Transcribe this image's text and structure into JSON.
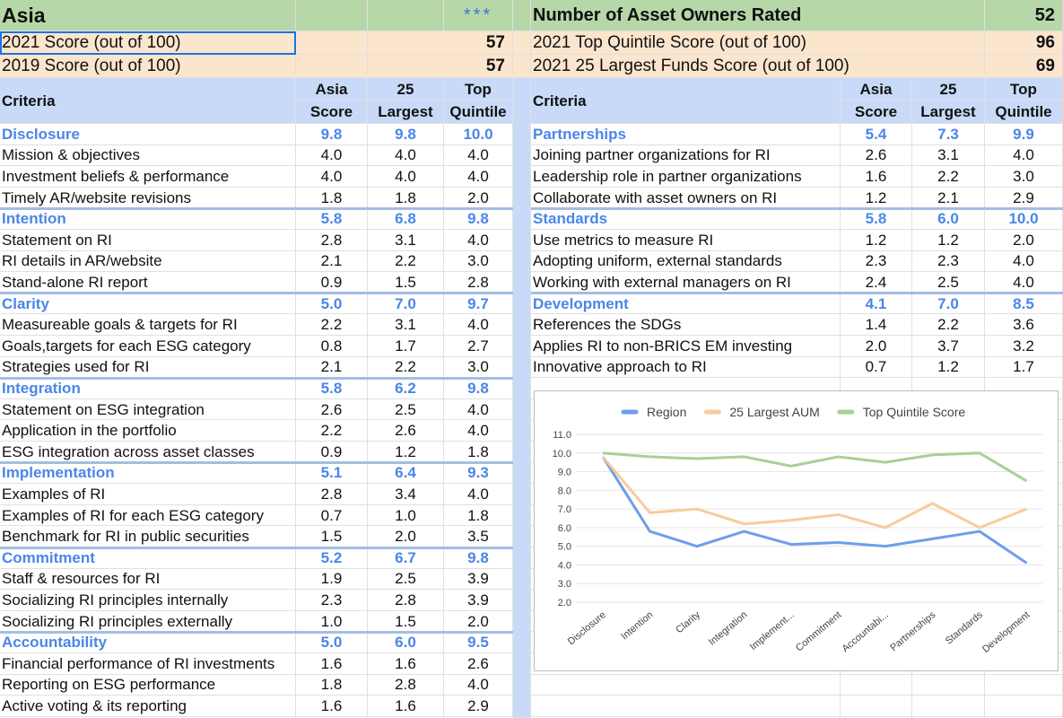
{
  "header": {
    "title": "Asia",
    "rating": "***",
    "owners_label": "Number of Asset Owners Rated",
    "owners_count": 52
  },
  "scores": {
    "left": [
      {
        "label": "2021 Score (out of 100)",
        "value": 57
      },
      {
        "label": "2019 Score (out of 100)",
        "value": 57
      }
    ],
    "right": [
      {
        "label": "2021 Top Quintile Score (out of 100)",
        "value": 96
      },
      {
        "label": "2021 25 Largest Funds Score (out of 100)",
        "value": 69
      }
    ]
  },
  "columns": {
    "criteria": "Criteria",
    "asia": [
      "Asia",
      "Score"
    ],
    "largest": [
      "25",
      "Largest"
    ],
    "top": [
      "Top",
      "Quintile"
    ]
  },
  "left_groups": [
    {
      "name": "Disclosure",
      "scores": [
        "9.8",
        "9.8",
        "10.0"
      ],
      "items": [
        {
          "label": "Mission & objectives",
          "scores": [
            "4.0",
            "4.0",
            "4.0"
          ]
        },
        {
          "label": "Investment beliefs & performance",
          "scores": [
            "4.0",
            "4.0",
            "4.0"
          ]
        },
        {
          "label": "Timely AR/website revisions",
          "scores": [
            "1.8",
            "1.8",
            "2.0"
          ]
        }
      ]
    },
    {
      "name": "Intention",
      "scores": [
        "5.8",
        "6.8",
        "9.8"
      ],
      "items": [
        {
          "label": "Statement on RI",
          "scores": [
            "2.8",
            "3.1",
            "4.0"
          ]
        },
        {
          "label": "RI details in AR/website",
          "scores": [
            "2.1",
            "2.2",
            "3.0"
          ]
        },
        {
          "label": "Stand-alone RI report",
          "scores": [
            "0.9",
            "1.5",
            "2.8"
          ]
        }
      ]
    },
    {
      "name": "Clarity",
      "scores": [
        "5.0",
        "7.0",
        "9.7"
      ],
      "items": [
        {
          "label": "Measureable goals & targets for RI",
          "scores": [
            "2.2",
            "3.1",
            "4.0"
          ]
        },
        {
          "label": "Goals,targets for each ESG category",
          "scores": [
            "0.8",
            "1.7",
            "2.7"
          ]
        },
        {
          "label": "Strategies used for RI",
          "scores": [
            "2.1",
            "2.2",
            "3.0"
          ]
        }
      ]
    },
    {
      "name": "Integration",
      "scores": [
        "5.8",
        "6.2",
        "9.8"
      ],
      "items": [
        {
          "label": "Statement on ESG integration",
          "scores": [
            "2.6",
            "2.5",
            "4.0"
          ]
        },
        {
          "label": "Application in the portfolio",
          "scores": [
            "2.2",
            "2.6",
            "4.0"
          ]
        },
        {
          "label": "ESG integration across asset classes",
          "scores": [
            "0.9",
            "1.2",
            "1.8"
          ]
        }
      ]
    },
    {
      "name": "Implementation",
      "scores": [
        "5.1",
        "6.4",
        "9.3"
      ],
      "items": [
        {
          "label": "Examples of RI",
          "scores": [
            "2.8",
            "3.4",
            "4.0"
          ]
        },
        {
          "label": "Examples of RI for each ESG category",
          "scores": [
            "0.7",
            "1.0",
            "1.8"
          ]
        },
        {
          "label": "Benchmark for RI in public securities",
          "scores": [
            "1.5",
            "2.0",
            "3.5"
          ]
        }
      ]
    },
    {
      "name": "Commitment",
      "scores": [
        "5.2",
        "6.7",
        "9.8"
      ],
      "items": [
        {
          "label": "Staff & resources for RI",
          "scores": [
            "1.9",
            "2.5",
            "3.9"
          ]
        },
        {
          "label": "Socializing RI principles internally",
          "scores": [
            "2.3",
            "2.8",
            "3.9"
          ]
        },
        {
          "label": "Socializing RI principles externally",
          "scores": [
            "1.0",
            "1.5",
            "2.0"
          ]
        }
      ]
    },
    {
      "name": "Accountability",
      "scores": [
        "5.0",
        "6.0",
        "9.5"
      ],
      "items": [
        {
          "label": "Financial performance of RI investments",
          "scores": [
            "1.6",
            "1.6",
            "2.6"
          ]
        },
        {
          "label": "Reporting on ESG performance",
          "scores": [
            "1.8",
            "2.8",
            "4.0"
          ]
        },
        {
          "label": "Active voting & its reporting",
          "scores": [
            "1.6",
            "1.6",
            "2.9"
          ]
        }
      ]
    }
  ],
  "right_groups": [
    {
      "name": "Partnerships",
      "scores": [
        "5.4",
        "7.3",
        "9.9"
      ],
      "items": [
        {
          "label": "Joining partner organizations for RI",
          "scores": [
            "2.6",
            "3.1",
            "4.0"
          ]
        },
        {
          "label": "Leadership role in partner organizations",
          "scores": [
            "1.6",
            "2.2",
            "3.0"
          ]
        },
        {
          "label": "Collaborate with asset owners on RI",
          "scores": [
            "1.2",
            "2.1",
            "2.9"
          ]
        }
      ]
    },
    {
      "name": "Standards",
      "scores": [
        "5.8",
        "6.0",
        "10.0"
      ],
      "items": [
        {
          "label": "Use metrics to measure RI",
          "scores": [
            "1.2",
            "1.2",
            "2.0"
          ]
        },
        {
          "label": "Adopting uniform, external standards",
          "scores": [
            "2.3",
            "2.3",
            "4.0"
          ]
        },
        {
          "label": "Working with external managers on RI",
          "scores": [
            "2.4",
            "2.5",
            "4.0"
          ]
        }
      ]
    },
    {
      "name": "Development",
      "scores": [
        "4.1",
        "7.0",
        "8.5"
      ],
      "items": [
        {
          "label": "References the SDGs",
          "scores": [
            "1.4",
            "2.2",
            "3.6"
          ]
        },
        {
          "label": "Applies RI to non-BRICS EM investing",
          "scores": [
            "2.0",
            "3.7",
            "3.2"
          ]
        },
        {
          "label": "Innovative approach to RI",
          "scores": [
            "0.7",
            "1.2",
            "1.7"
          ]
        }
      ]
    }
  ],
  "chart_data": {
    "type": "line",
    "categories": [
      "Disclosure",
      "Intention",
      "Clarity",
      "Integration",
      "Implement...",
      "Commitment",
      "Accountabi...",
      "Partnerships",
      "Standards",
      "Development"
    ],
    "series": [
      {
        "name": "Region",
        "color": "#6d9eeb",
        "values": [
          9.8,
          5.8,
          5.0,
          5.8,
          5.1,
          5.2,
          5.0,
          5.4,
          5.8,
          4.1
        ]
      },
      {
        "name": "25 Largest AUM",
        "color": "#f9cb9c",
        "values": [
          9.8,
          6.8,
          7.0,
          6.2,
          6.4,
          6.7,
          6.0,
          7.3,
          6.0,
          7.0
        ]
      },
      {
        "name": "Top Quintile Score",
        "color": "#a9d096",
        "values": [
          10.0,
          9.8,
          9.7,
          9.8,
          9.3,
          9.8,
          9.5,
          9.9,
          10.0,
          8.5
        ]
      }
    ],
    "ylim": [
      2,
      11
    ],
    "yticks": [
      {
        "value": 2,
        "label": "2.0"
      },
      {
        "value": 3,
        "label": "3.0"
      },
      {
        "value": 4,
        "label": "4.0"
      },
      {
        "value": 5,
        "label": "5.0"
      },
      {
        "value": 6,
        "label": "6.0"
      },
      {
        "value": 7,
        "label": "7.0"
      },
      {
        "value": 8,
        "label": "8.0"
      },
      {
        "value": 9,
        "label": "9.0"
      },
      {
        "value": 10,
        "label": "10.0"
      },
      {
        "value": 11,
        "label": "11.0"
      }
    ],
    "grid": true,
    "legend": "top"
  }
}
